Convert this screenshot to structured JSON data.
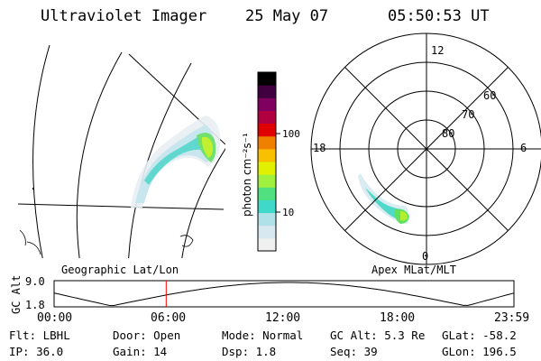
{
  "header": {
    "instrument": "Ultraviolet Imager",
    "date": "25 May 07",
    "time": "05:50:53 UT"
  },
  "colorbar": {
    "label": "photon cm⁻²s⁻¹",
    "ticks": [
      "100",
      "10"
    ],
    "scale": "log",
    "colors": [
      "#f0f0f0",
      "#d8e8f0",
      "#b0e0e8",
      "#40d8c8",
      "#50e080",
      "#a0f040",
      "#e0f000",
      "#f8c000",
      "#f08000",
      "#e00000",
      "#b00040",
      "#800060",
      "#400040",
      "#000000"
    ]
  },
  "polar": {
    "mlt_labels": {
      "top": "12",
      "left": "18",
      "right": "6",
      "bottom": "0"
    },
    "lat_labels": [
      "60",
      "70",
      "80"
    ],
    "caption": "Apex MLat/MLT"
  },
  "geo": {
    "caption": "Geographic Lat/Lon"
  },
  "timeline": {
    "ylabel": "GC Alt",
    "yticks": [
      "9.0",
      "1.8"
    ],
    "xticks": [
      "00:00",
      "06:00",
      "12:00",
      "18:00",
      "23:59"
    ],
    "current_time_hours": 5.85
  },
  "footer": {
    "filter": "Flt: LBHL",
    "ip": "IP: 36.0",
    "door": "Door: Open",
    "gain": "Gain: 14",
    "mode": "Mode: Normal",
    "dsp": "Dsp:    1.8",
    "gc_alt": "GC Alt: 5.3 Re",
    "seq": "Seq: 39",
    "glat": "GLat: -58.2",
    "glon": "GLon: 196.5"
  }
}
